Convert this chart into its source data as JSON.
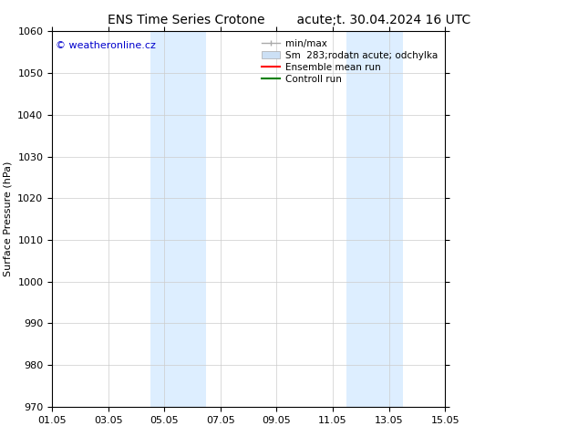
{
  "title_left": "ENS Time Series Crotone",
  "title_right": "acute;t. 30.04.2024 16 UTC",
  "ylabel": "Surface Pressure (hPa)",
  "xlabel_ticks": [
    "01.05",
    "03.05",
    "05.05",
    "07.05",
    "09.05",
    "11.05",
    "13.05",
    "15.05"
  ],
  "ylim": [
    970,
    1060
  ],
  "yticks": [
    970,
    980,
    990,
    1000,
    1010,
    1020,
    1030,
    1040,
    1050,
    1060
  ],
  "xlim": [
    0,
    14
  ],
  "xtick_positions": [
    0,
    2,
    4,
    6,
    8,
    10,
    12,
    14
  ],
  "background_color": "#ffffff",
  "plot_bg_color": "#ffffff",
  "shaded_regions": [
    {
      "xmin": 3.5,
      "xmax": 5.5,
      "color": "#ddeeff"
    },
    {
      "xmin": 10.5,
      "xmax": 12.5,
      "color": "#ddeeff"
    }
  ],
  "watermark_text": "© weatheronline.cz",
  "watermark_color": "#0000cc",
  "legend_entries": [
    {
      "label": "min/max",
      "color": "#aaaaaa",
      "lw": 1.0
    },
    {
      "label": "Sm  283;rodatn acute; odchylka",
      "color": "#cce0f5",
      "lw": 5
    },
    {
      "label": "Ensemble mean run",
      "color": "#ff0000",
      "lw": 1.5
    },
    {
      "label": "Controll run",
      "color": "#008000",
      "lw": 1.5
    }
  ],
  "grid_color": "#cccccc",
  "grid_linestyle": "-",
  "grid_linewidth": 0.5,
  "title_fontsize": 10,
  "axis_fontsize": 8,
  "tick_fontsize": 8,
  "legend_fontsize": 7.5
}
